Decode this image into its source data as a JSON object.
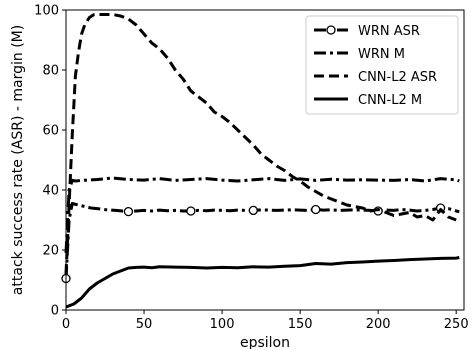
{
  "chart_data": {
    "type": "line",
    "xlabel": "epsilon",
    "ylabel": "attack success rate (ASR) - margin (M)",
    "xlim": [
      0,
      255
    ],
    "ylim": [
      0,
      100
    ],
    "xticks": [
      0,
      50,
      100,
      150,
      200,
      250
    ],
    "yticks": [
      0,
      20,
      40,
      60,
      80,
      100
    ],
    "grid": false,
    "legend_position": "top-right",
    "series": [
      {
        "name": "WRN ASR",
        "style": "dashdot-circle",
        "color": "#000000",
        "x": [
          0,
          2,
          4,
          8,
          12,
          16,
          20,
          24,
          28,
          32,
          36,
          40,
          45,
          50,
          55,
          60,
          65,
          70,
          75,
          80,
          85,
          90,
          95,
          100,
          105,
          110,
          115,
          120,
          125,
          130,
          135,
          140,
          145,
          150,
          155,
          160,
          165,
          170,
          175,
          180,
          185,
          190,
          195,
          200,
          205,
          210,
          215,
          220,
          225,
          230,
          235,
          240,
          245,
          250,
          252
        ],
        "y": [
          10.5,
          30,
          35.5,
          35,
          34.5,
          34,
          33.8,
          33.5,
          33.3,
          33.2,
          33,
          32.8,
          33,
          33.2,
          33,
          33.3,
          33.1,
          33.2,
          33,
          33,
          33.2,
          33.1,
          33.3,
          33.2,
          33.1,
          33.3,
          33.2,
          33.2,
          33.4,
          33.3,
          33.2,
          33.3,
          33.4,
          33.3,
          33.2,
          33.5,
          33.3,
          33.4,
          33.2,
          33.3,
          33.4,
          33.3,
          33.2,
          33.0,
          33.3,
          33.2,
          33.5,
          33.3,
          33.0,
          33.2,
          33.5,
          34.0,
          33.8,
          33.0,
          32.8
        ],
        "marker_x": [
          0,
          40,
          80,
          120,
          160,
          200,
          240
        ],
        "marker_y": [
          10.5,
          32.8,
          33,
          33.2,
          33.5,
          33.0,
          34.0
        ]
      },
      {
        "name": "WRN M",
        "style": "dashdot",
        "color": "#000000",
        "x": [
          0,
          2,
          4,
          6,
          10,
          20,
          30,
          40,
          50,
          60,
          70,
          80,
          90,
          100,
          110,
          120,
          130,
          140,
          150,
          160,
          170,
          180,
          190,
          200,
          210,
          220,
          230,
          240,
          250,
          252
        ],
        "y": [
          19,
          40,
          43.2,
          43,
          43.2,
          43.5,
          44,
          43.5,
          43.3,
          43.8,
          43.2,
          43.5,
          43.8,
          43.3,
          43.0,
          43.4,
          43.8,
          43.2,
          43.7,
          43.2,
          43.6,
          43.3,
          43.4,
          43.3,
          43.2,
          43.5,
          43.0,
          43.8,
          43.4,
          43.0
        ]
      },
      {
        "name": "CNN-L2 ASR",
        "style": "dashed",
        "color": "#000000",
        "x": [
          0,
          2,
          4,
          6,
          8,
          10,
          12,
          15,
          18,
          20,
          25,
          30,
          35,
          40,
          45,
          50,
          55,
          60,
          65,
          70,
          75,
          80,
          85,
          90,
          95,
          100,
          105,
          110,
          115,
          120,
          125,
          130,
          135,
          140,
          145,
          150,
          155,
          160,
          165,
          170,
          175,
          180,
          185,
          190,
          195,
          200,
          205,
          210,
          215,
          220,
          225,
          230,
          235,
          240,
          245,
          250
        ],
        "y": [
          12,
          35,
          58,
          78,
          86,
          92,
          95,
          97.5,
          98.5,
          98.5,
          98.5,
          98.5,
          98,
          97,
          95,
          92,
          89,
          87,
          84,
          80,
          77,
          73,
          71,
          69,
          66,
          64.5,
          62.5,
          60,
          57.5,
          55,
          52,
          50,
          48,
          46.5,
          44.5,
          43,
          41,
          39.5,
          38,
          37,
          36,
          35,
          34.5,
          34,
          33,
          33.5,
          32.5,
          31.5,
          32,
          32.5,
          31,
          31.5,
          30,
          33.5,
          31,
          30
        ]
      },
      {
        "name": "CNN-L2 M",
        "style": "solid",
        "color": "#000000",
        "x": [
          0,
          5,
          10,
          15,
          20,
          25,
          30,
          35,
          40,
          45,
          50,
          55,
          60,
          70,
          80,
          90,
          100,
          110,
          120,
          130,
          140,
          150,
          160,
          170,
          180,
          190,
          200,
          210,
          220,
          230,
          240,
          250,
          252
        ],
        "y": [
          1,
          2,
          4,
          7,
          9,
          10.5,
          12,
          13,
          14,
          14.2,
          14.3,
          14.1,
          14.4,
          14.3,
          14.2,
          14.0,
          14.2,
          14.1,
          14.4,
          14.3,
          14.6,
          14.8,
          15.5,
          15.3,
          15.8,
          16.0,
          16.3,
          16.5,
          16.8,
          17.0,
          17.2,
          17.3,
          17.5
        ]
      }
    ]
  }
}
